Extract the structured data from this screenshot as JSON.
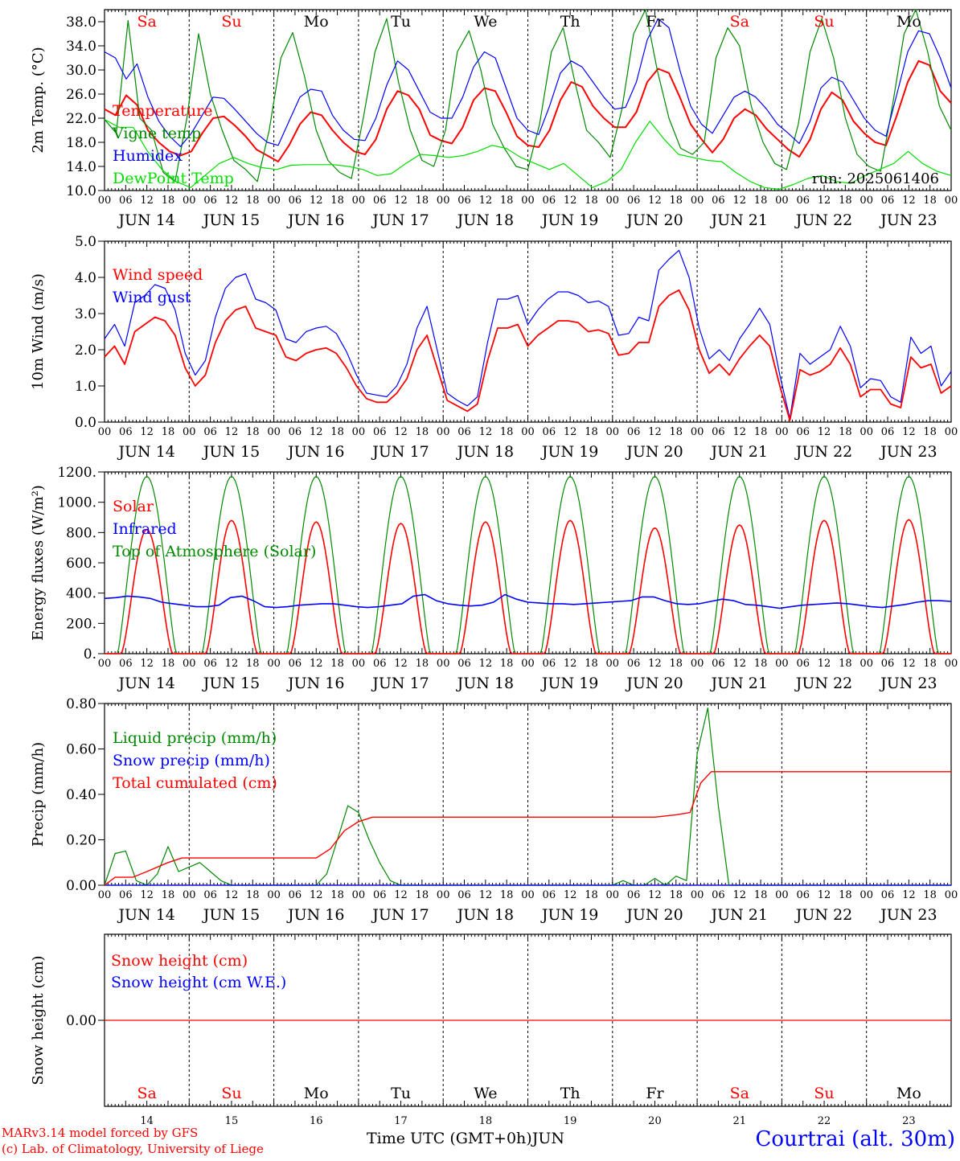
{
  "footer": {
    "model": "MARv3.14 model forced by GFS",
    "copyright": "(c) Lab. of Climatology, University of Liege",
    "xlabel": "Time UTC (GMT+0h)",
    "month": "JUN",
    "location": "Courtrai (alt. 30m)"
  },
  "run_label": "run: 2025061406",
  "colors": {
    "red": "#ff0000",
    "blue": "#0000ff",
    "green": "#008800",
    "lightgreen": "#00dd00",
    "grid": "#000000"
  },
  "x_axis": {
    "hour_ticks": [
      "00",
      "06",
      "12",
      "18"
    ],
    "final_tick": "00",
    "dates": [
      "JUN 14",
      "JUN 15",
      "JUN 16",
      "JUN 17",
      "JUN 18",
      "JUN 19",
      "JUN 20",
      "JUN 21",
      "JUN 22",
      "JUN 23"
    ],
    "day_numbers": [
      "14",
      "15",
      "16",
      "17",
      "18",
      "19",
      "20",
      "21",
      "22",
      "23"
    ],
    "weekdays": [
      "Sa",
      "Su",
      "Mo",
      "Tu",
      "We",
      "Th",
      "Fr",
      "Sa",
      "Su",
      "Mo"
    ],
    "weekend": [
      true,
      true,
      false,
      false,
      false,
      false,
      false,
      true,
      true,
      false
    ]
  },
  "chart_data": [
    {
      "type": "line",
      "ylabel": "2m Temp. (°C)",
      "ylim": [
        10,
        40
      ],
      "yticks": [
        "10.0",
        "14.0",
        "18.0",
        "22.0",
        "26.0",
        "30.0",
        "34.0",
        "38.0"
      ],
      "legend_placement": "left",
      "series": [
        {
          "name": "Temperature",
          "color": "#ff0000",
          "values": [
            23.5,
            22.5,
            25.8,
            24.2,
            20,
            18,
            16.5,
            15.8,
            16.5,
            19.5,
            22,
            22.3,
            20.8,
            19,
            16.8,
            15.8,
            14.8,
            17.5,
            21,
            23,
            22.5,
            20,
            18,
            16.5,
            16,
            18.5,
            23.5,
            26.5,
            25.8,
            23.5,
            19.2,
            18.3,
            17.8,
            20.5,
            25,
            27,
            26.5,
            23,
            19,
            17.5,
            17.2,
            20,
            25,
            28,
            27.2,
            24,
            22,
            20.5,
            20.5,
            23,
            28,
            30.2,
            29.5,
            25.5,
            21,
            18.5,
            16.3,
            18.5,
            22,
            23.5,
            22.5,
            20.2,
            18.5,
            16.8,
            15.6,
            18.5,
            23.5,
            26.3,
            25,
            21.5,
            19.5,
            18,
            17.5,
            22.5,
            28,
            31.5,
            30.8,
            26.5,
            24.5
          ]
        },
        {
          "name": "Vigne temp",
          "color": "#008800",
          "values": [
            21.8,
            19.5,
            38.2,
            22,
            20,
            13,
            11.5,
            22,
            36,
            26,
            20,
            15,
            13.5,
            11.5,
            20,
            32,
            36.2,
            29,
            20,
            15,
            13,
            12,
            22,
            33,
            38.5,
            28,
            20,
            15,
            14,
            20,
            33,
            36.5,
            30,
            21,
            17,
            14,
            13.5,
            21,
            33,
            37,
            28,
            20,
            18,
            15.5,
            23.5,
            36,
            40,
            30,
            22,
            17,
            16,
            18,
            32,
            37,
            34,
            24,
            18,
            14.5,
            13.5,
            21,
            33,
            38.5,
            32,
            22,
            16,
            14,
            13.2,
            24,
            36,
            40,
            33,
            24,
            20
          ]
        },
        {
          "name": "Humidex",
          "color": "#0000ff",
          "values": [
            33,
            32,
            28.5,
            31,
            25.5,
            21.5,
            19,
            17.3,
            19.5,
            22.5,
            25.5,
            25.3,
            23.5,
            21.5,
            19.5,
            18,
            17.5,
            21.5,
            25.5,
            26.8,
            26.5,
            22.5,
            20,
            18.5,
            18.3,
            22,
            27.5,
            31.5,
            30,
            26.5,
            23,
            22,
            22,
            25.5,
            30.5,
            33,
            32,
            27,
            22,
            20,
            19.3,
            24,
            29.5,
            31.5,
            30.5,
            28,
            25.5,
            23.5,
            23.8,
            28,
            35,
            38.5,
            37,
            30,
            24,
            21,
            19.5,
            22.5,
            25.5,
            26.5,
            25.5,
            23.5,
            21,
            19.5,
            17.8,
            21.5,
            27,
            28.8,
            28,
            25,
            22,
            20,
            19,
            26,
            33,
            36.5,
            36,
            32,
            27
          ]
        },
        {
          "name": "DewPoint Temp",
          "color": "#00dd00",
          "values": [
            21.8,
            20.5,
            20.5,
            16.5,
            13.5,
            11.5,
            10.5,
            12.5,
            14.5,
            15.5,
            14.5,
            13.8,
            13.5,
            14.2,
            14.3,
            14.3,
            14.3,
            14,
            13.5,
            12.5,
            12.8,
            14.5,
            16,
            15.8,
            15.5,
            15.8,
            16.5,
            17.5,
            17,
            15.5,
            14.5,
            13.5,
            14.5,
            12.5,
            10.5,
            11.5,
            13.5,
            18,
            21.5,
            18.5,
            16,
            15.5,
            15,
            14.8,
            13,
            11.5,
            10.5,
            10.2,
            11,
            12,
            12.5,
            11.5,
            11.2,
            12.5,
            13.5,
            14.5,
            16.5,
            14.5,
            13.2,
            12.5
          ]
        }
      ],
      "title": ""
    },
    {
      "type": "line",
      "ylabel": "10m Wind (m/s)",
      "ylim": [
        0,
        5
      ],
      "yticks": [
        "0.0",
        "1.0",
        "2.0",
        "3.0",
        "4.0",
        "5.0"
      ],
      "legend_placement": "left",
      "series": [
        {
          "name": "Wind speed",
          "color": "#ff0000",
          "values": [
            1.8,
            2.1,
            1.6,
            2.5,
            2.7,
            2.9,
            2.8,
            2.4,
            1.5,
            1.0,
            1.3,
            2.2,
            2.8,
            3.1,
            3.2,
            2.6,
            2.5,
            2.4,
            1.8,
            1.7,
            1.9,
            2.0,
            2.05,
            1.9,
            1.5,
            1.0,
            0.65,
            0.55,
            0.55,
            0.8,
            1.2,
            2.0,
            2.4,
            1.5,
            0.6,
            0.45,
            0.3,
            0.5,
            1.7,
            2.6,
            2.6,
            2.7,
            2.1,
            2.4,
            2.6,
            2.8,
            2.8,
            2.75,
            2.5,
            2.55,
            2.45,
            1.85,
            1.9,
            2.2,
            2.2,
            3.2,
            3.5,
            3.65,
            3.1,
            2.0,
            1.35,
            1.6,
            1.3,
            1.75,
            2.1,
            2.4,
            2.1,
            1.0,
            0.05,
            1.45,
            1.3,
            1.4,
            1.6,
            2.05,
            1.6,
            0.7,
            0.9,
            0.9,
            0.5,
            0.4,
            1.8,
            1.5,
            1.6,
            0.8,
            1.0
          ]
        },
        {
          "name": "Wind gust",
          "color": "#0000ff",
          "values": [
            2.3,
            2.7,
            2.1,
            3.3,
            3.5,
            3.8,
            3.7,
            3.1,
            1.9,
            1.3,
            1.7,
            2.9,
            3.7,
            4.0,
            4.1,
            3.4,
            3.3,
            3.1,
            2.3,
            2.2,
            2.5,
            2.6,
            2.65,
            2.45,
            1.95,
            1.3,
            0.8,
            0.75,
            0.7,
            1.0,
            1.6,
            2.6,
            3.2,
            2.0,
            0.8,
            0.6,
            0.45,
            0.7,
            2.2,
            3.4,
            3.4,
            3.5,
            2.7,
            3.1,
            3.4,
            3.6,
            3.6,
            3.5,
            3.3,
            3.35,
            3.2,
            2.4,
            2.45,
            2.9,
            2.8,
            4.2,
            4.5,
            4.75,
            4.0,
            2.6,
            1.75,
            2.0,
            1.7,
            2.3,
            2.7,
            3.15,
            2.7,
            1.3,
            0.1,
            1.9,
            1.6,
            1.8,
            2.0,
            2.65,
            2.1,
            0.95,
            1.2,
            1.15,
            0.7,
            0.55,
            2.35,
            1.9,
            2.1,
            1.0,
            1.4
          ]
        }
      ],
      "title": ""
    },
    {
      "type": "line",
      "ylabel": "Energy fluxes (W/m²)",
      "ylim": [
        0,
        1200
      ],
      "yticks": [
        "0.",
        "200.",
        "400.",
        "600.",
        "800.",
        "1000.",
        "1200."
      ],
      "legend_placement": "left",
      "toa_peak": 1170,
      "solar_peaks": [
        820,
        880,
        870,
        860,
        870,
        880,
        830,
        850,
        880,
        885
      ],
      "infrared_values": [
        365,
        370,
        380,
        375,
        365,
        340,
        330,
        320,
        310,
        310,
        320,
        370,
        380,
        350,
        310,
        305,
        310,
        320,
        325,
        330,
        330,
        320,
        310,
        305,
        310,
        320,
        330,
        380,
        390,
        350,
        330,
        320,
        315,
        320,
        340,
        390,
        360,
        340,
        335,
        330,
        330,
        325,
        330,
        335,
        340,
        345,
        350,
        375,
        375,
        350,
        330,
        325,
        330,
        345,
        360,
        350,
        325,
        320,
        310,
        300,
        310,
        320,
        325,
        330,
        335,
        330,
        320,
        310,
        305,
        315,
        325,
        340,
        350,
        350,
        345
      ],
      "series": [
        {
          "name": "Solar",
          "color": "#ff0000"
        },
        {
          "name": "Infrared",
          "color": "#0000ff"
        },
        {
          "name": "Top of Atmosphere (Solar)",
          "color": "#008800"
        }
      ],
      "title": ""
    },
    {
      "type": "line",
      "ylabel": "Precip (mm/h)",
      "ylim": [
        0,
        0.8
      ],
      "yticks": [
        "0.00",
        "0.20",
        "0.40",
        "0.60",
        "0.80"
      ],
      "legend_placement": "left",
      "series": [
        {
          "name": "Liquid precip (mm/h)",
          "color": "#008800"
        },
        {
          "name": "Snow precip (mm/h)",
          "color": "#0000ff"
        },
        {
          "name": "Total cumulated (cm)",
          "color": "#ff0000"
        }
      ],
      "liquid_points": [
        [
          0,
          0.0
        ],
        [
          3,
          0.14
        ],
        [
          6,
          0.15
        ],
        [
          9,
          0.02
        ],
        [
          12,
          0.0
        ],
        [
          15,
          0.05
        ],
        [
          18,
          0.17
        ],
        [
          21,
          0.06
        ],
        [
          24,
          0.08
        ],
        [
          27,
          0.1
        ],
        [
          30,
          0.06
        ],
        [
          33,
          0.02
        ],
        [
          36,
          0.0
        ],
        [
          48,
          0.0
        ],
        [
          60,
          0.0
        ],
        [
          63,
          0.05
        ],
        [
          66,
          0.2
        ],
        [
          69,
          0.35
        ],
        [
          72,
          0.32
        ],
        [
          75,
          0.2
        ],
        [
          78,
          0.1
        ],
        [
          81,
          0.02
        ],
        [
          84,
          0.0
        ],
        [
          144,
          0.0
        ],
        [
          147,
          0.02
        ],
        [
          150,
          0.0
        ],
        [
          153,
          0.0
        ],
        [
          156,
          0.03
        ],
        [
          159,
          0.0
        ],
        [
          162,
          0.04
        ],
        [
          165,
          0.02
        ],
        [
          168,
          0.58
        ],
        [
          171,
          0.78
        ],
        [
          174,
          0.35
        ],
        [
          177,
          0.0
        ],
        [
          240,
          0.0
        ]
      ],
      "cumulated_points": [
        [
          0,
          0.0
        ],
        [
          3,
          0.035
        ],
        [
          8,
          0.035
        ],
        [
          12,
          0.06
        ],
        [
          18,
          0.1
        ],
        [
          22,
          0.12
        ],
        [
          36,
          0.12
        ],
        [
          60,
          0.12
        ],
        [
          64,
          0.16
        ],
        [
          68,
          0.24
        ],
        [
          72,
          0.28
        ],
        [
          76,
          0.3
        ],
        [
          84,
          0.3
        ],
        [
          140,
          0.3
        ],
        [
          156,
          0.3
        ],
        [
          162,
          0.31
        ],
        [
          166,
          0.32
        ],
        [
          169,
          0.45
        ],
        [
          172,
          0.5
        ],
        [
          240,
          0.5
        ]
      ],
      "title": ""
    },
    {
      "type": "line",
      "ylabel": "Snow height (cm)",
      "ylim": [
        -0.1,
        0.1
      ],
      "yticks": [
        "0.00"
      ],
      "legend_placement": "left",
      "series": [
        {
          "name": "Snow height (cm)",
          "color": "#ff0000",
          "values": [
            0,
            0
          ]
        },
        {
          "name": "Snow height (cm W.E.)",
          "color": "#0000ff",
          "values": [
            0,
            0
          ]
        }
      ],
      "title": ""
    }
  ]
}
